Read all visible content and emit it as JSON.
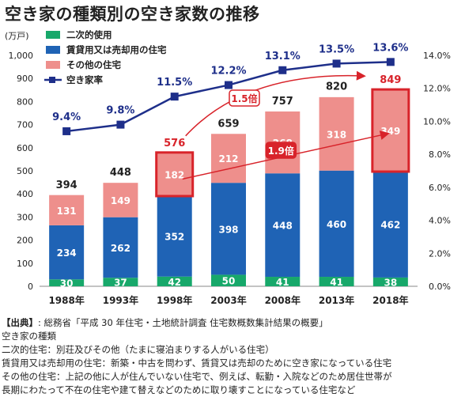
{
  "title": "空き家の種類別の空き家数の推移",
  "chart_data": {
    "type": "bar",
    "categories": [
      "1988年",
      "1993年",
      "1998年",
      "2003年",
      "2008年",
      "2013年",
      "2018年"
    ],
    "series": [
      {
        "name": "二次的使用",
        "values": [
          30,
          37,
          42,
          50,
          41,
          41,
          38
        ],
        "color": "#17a86a"
      },
      {
        "name": "賃貸用又は売却用の住宅",
        "values": [
          234,
          262,
          352,
          398,
          448,
          460,
          462
        ],
        "color": "#1f63b5"
      },
      {
        "name": "その他の住宅",
        "values": [
          131,
          149,
          182,
          212,
          268,
          318,
          349
        ],
        "color": "#ee8f8c"
      }
    ],
    "totals": [
      394,
      448,
      576,
      659,
      757,
      820,
      849
    ],
    "line_series": {
      "name": "空き家率",
      "values": [
        9.4,
        9.8,
        11.5,
        12.2,
        13.1,
        13.5,
        13.6
      ],
      "labels": [
        "9.4%",
        "9.8%",
        "11.5%",
        "12.2%",
        "13.1%",
        "13.5%",
        "13.6%"
      ],
      "color": "#1e2f8a"
    },
    "ylabel_left": "(万戸)",
    "ylim_left": [
      0,
      1000
    ],
    "yticks_left": [
      "0",
      "100",
      "200",
      "300",
      "400",
      "500",
      "600",
      "700",
      "800",
      "900",
      "1,000"
    ],
    "ylim_right": [
      0,
      14
    ],
    "yticks_right": [
      "0.0%",
      "2.0%",
      "4.0%",
      "6.0%",
      "8.0%",
      "10.0%",
      "12.0%",
      "14.0%"
    ],
    "highlight_indices": [
      2,
      6
    ],
    "highlight_color": "#d8232a",
    "annotations": [
      "1.5倍",
      "1.9倍"
    ],
    "legend_position": "top-left"
  },
  "footer": {
    "source": "【出典】",
    "source_text": ": 総務省「平成 30 年住宅・土地統計調査 住宅数概数集計結果の概要」",
    "heading": "空き家の種類",
    "lines": [
      "二次的住宅：別荘及びその他（たまに寝泊まりする人がいる住宅）",
      "賃貸用又は売却用の住宅：新築・中古を問わず、賃貸又は売却のために空き家になっている住宅",
      "その他の住宅：上記の他に人が住んでいない住宅で、例えば、転勤・入院などのため居住世帯が",
      "長期にわたって不在の住宅や建て替えなどのために取り壊すことになっている住宅など"
    ]
  }
}
